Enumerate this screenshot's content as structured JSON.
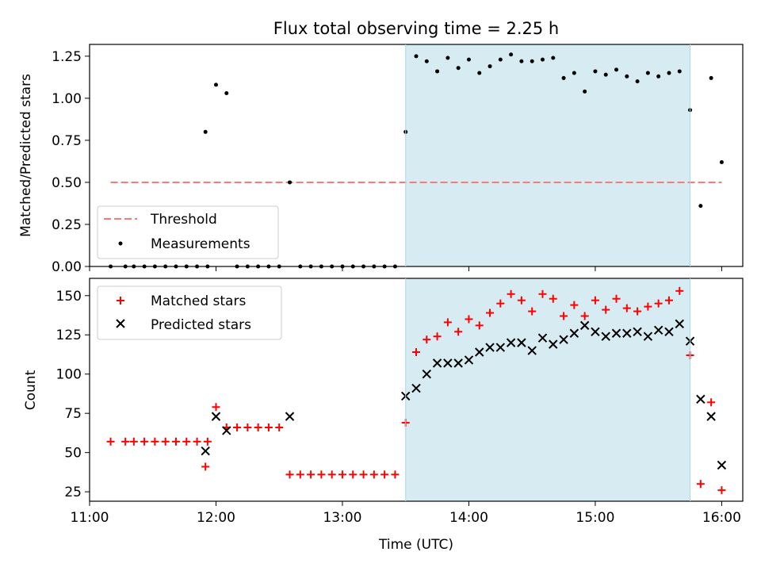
{
  "chart_data": [
    {
      "type": "scatter",
      "title": "Flux total observing time = 2.25 h",
      "ylabel": "Matched/Predicted stars",
      "xlabel": "",
      "xlim": [
        "11:00",
        "16:10"
      ],
      "ylim": [
        0,
        1.32
      ],
      "yticks": [
        "0.00",
        "0.25",
        "0.50",
        "0.75",
        "1.00",
        "1.25"
      ],
      "xticks": [
        "11:00",
        "12:00",
        "13:00",
        "14:00",
        "15:00",
        "16:00"
      ],
      "shaded_interval": [
        "13:30",
        "15:45"
      ],
      "shade_color": "#add8e6",
      "legend_position": "lower-left",
      "threshold": {
        "name": "Threshold",
        "value": 0.5,
        "x": [
          "11:10",
          "16:00"
        ],
        "color": "#ff7777",
        "style": "dashed"
      },
      "series": [
        {
          "name": "Measurements",
          "color": "#000000",
          "marker": "dot",
          "x": [
            "11:10",
            "11:17",
            "11:21",
            "11:26",
            "11:31",
            "11:36",
            "11:41",
            "11:46",
            "11:51",
            "11:56",
            "11:55",
            "12:00",
            "12:05",
            "12:10",
            "12:15",
            "12:20",
            "12:25",
            "12:30",
            "12:35",
            "12:40",
            "12:45",
            "12:50",
            "12:55",
            "13:00",
            "13:05",
            "13:10",
            "13:15",
            "13:20",
            "13:25",
            "13:30",
            "13:35",
            "13:40",
            "13:45",
            "13:50",
            "13:55",
            "14:00",
            "14:05",
            "14:10",
            "14:15",
            "14:20",
            "14:25",
            "14:30",
            "14:35",
            "14:40",
            "14:45",
            "14:50",
            "14:55",
            "15:00",
            "15:05",
            "15:10",
            "15:15",
            "15:20",
            "15:25",
            "15:30",
            "15:35",
            "15:40",
            "15:45",
            "15:50",
            "15:55",
            "16:00"
          ],
          "y": [
            0,
            0,
            0,
            0,
            0,
            0,
            0,
            0,
            0,
            0,
            0.8,
            1.08,
            1.03,
            0,
            0,
            0,
            0,
            0,
            0.5,
            0,
            0,
            0,
            0,
            0,
            0,
            0,
            0,
            0,
            0,
            0.8,
            1.25,
            1.22,
            1.16,
            1.24,
            1.18,
            1.23,
            1.15,
            1.19,
            1.23,
            1.26,
            1.22,
            1.22,
            1.23,
            1.24,
            1.12,
            1.15,
            1.04,
            1.16,
            1.14,
            1.17,
            1.13,
            1.1,
            1.15,
            1.13,
            1.15,
            1.16,
            0.93,
            0.36,
            1.12,
            0.62
          ]
        }
      ]
    },
    {
      "type": "scatter",
      "title": "",
      "ylabel": "Count",
      "xlabel": "Time (UTC)",
      "xlim": [
        "11:00",
        "16:10"
      ],
      "ylim": [
        19,
        161
      ],
      "yticks": [
        "25",
        "50",
        "75",
        "100",
        "125",
        "150"
      ],
      "xticks": [
        "11:00",
        "12:00",
        "13:00",
        "14:00",
        "15:00",
        "16:00"
      ],
      "shaded_interval": [
        "13:30",
        "15:45"
      ],
      "shade_color": "#add8e6",
      "legend_position": "top-left",
      "series": [
        {
          "name": "Matched stars",
          "color": "#ff0000",
          "marker": "plus",
          "x": [
            "11:10",
            "11:17",
            "11:21",
            "11:26",
            "11:31",
            "11:36",
            "11:41",
            "11:46",
            "11:51",
            "11:56",
            "11:55",
            "12:00",
            "12:05",
            "12:10",
            "12:15",
            "12:20",
            "12:25",
            "12:30",
            "12:35",
            "12:40",
            "12:45",
            "12:50",
            "12:55",
            "13:00",
            "13:05",
            "13:10",
            "13:15",
            "13:20",
            "13:25",
            "13:30",
            "13:35",
            "13:40",
            "13:45",
            "13:50",
            "13:55",
            "14:00",
            "14:05",
            "14:10",
            "14:15",
            "14:20",
            "14:25",
            "14:30",
            "14:35",
            "14:40",
            "14:45",
            "14:50",
            "14:55",
            "15:00",
            "15:05",
            "15:10",
            "15:15",
            "15:20",
            "15:25",
            "15:30",
            "15:35",
            "15:40",
            "15:45",
            "15:50",
            "15:55",
            "16:00"
          ],
          "y": [
            57,
            57,
            57,
            57,
            57,
            57,
            57,
            57,
            57,
            57,
            41,
            79,
            66,
            66,
            66,
            66,
            66,
            66,
            36,
            36,
            36,
            36,
            36,
            36,
            36,
            36,
            36,
            36,
            36,
            69,
            114,
            122,
            124,
            133,
            127,
            135,
            131,
            139,
            145,
            151,
            147,
            140,
            151,
            148,
            137,
            144,
            137,
            147,
            141,
            148,
            142,
            140,
            143,
            145,
            147,
            153,
            112,
            30,
            82,
            26
          ]
        },
        {
          "name": "Predicted stars",
          "color": "#000000",
          "marker": "x",
          "x": [
            "11:55",
            "12:00",
            "12:05",
            "12:35",
            "13:30",
            "13:35",
            "13:40",
            "13:45",
            "13:50",
            "13:55",
            "14:00",
            "14:05",
            "14:10",
            "14:15",
            "14:20",
            "14:25",
            "14:30",
            "14:35",
            "14:40",
            "14:45",
            "14:50",
            "14:55",
            "15:00",
            "15:05",
            "15:10",
            "15:15",
            "15:20",
            "15:25",
            "15:30",
            "15:35",
            "15:40",
            "15:45",
            "15:50",
            "15:55",
            "16:00"
          ],
          "y": [
            51,
            73,
            64,
            73,
            86,
            91,
            100,
            107,
            107,
            107,
            109,
            114,
            117,
            117,
            120,
            120,
            115,
            123,
            119,
            122,
            126,
            131,
            127,
            124,
            126,
            126,
            127,
            124,
            128,
            127,
            132,
            121,
            84,
            73,
            42
          ]
        }
      ]
    }
  ]
}
